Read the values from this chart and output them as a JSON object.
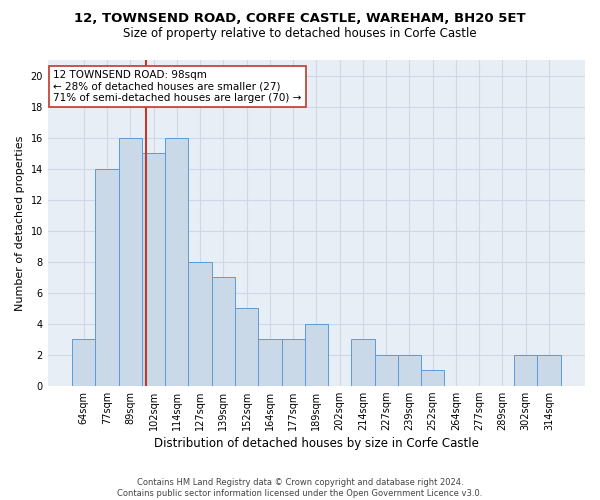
{
  "title1": "12, TOWNSEND ROAD, CORFE CASTLE, WAREHAM, BH20 5ET",
  "title2": "Size of property relative to detached houses in Corfe Castle",
  "xlabel": "Distribution of detached houses by size in Corfe Castle",
  "ylabel": "Number of detached properties",
  "categories": [
    "64sqm",
    "77sqm",
    "89sqm",
    "102sqm",
    "114sqm",
    "127sqm",
    "139sqm",
    "152sqm",
    "164sqm",
    "177sqm",
    "189sqm",
    "202sqm",
    "214sqm",
    "227sqm",
    "239sqm",
    "252sqm",
    "264sqm",
    "277sqm",
    "289sqm",
    "302sqm",
    "314sqm"
  ],
  "values": [
    3,
    14,
    16,
    15,
    16,
    8,
    7,
    5,
    3,
    3,
    4,
    0,
    3,
    2,
    2,
    1,
    0,
    0,
    0,
    2,
    2
  ],
  "bar_color": "#c9d9e8",
  "bar_edge_color": "#5b9bd5",
  "grid_color": "#d0d8e8",
  "background_color": "#e8eef5",
  "vline_color": "#c0392b",
  "annotation_text": "12 TOWNSEND ROAD: 98sqm\n← 28% of detached houses are smaller (27)\n71% of semi-detached houses are larger (70) →",
  "annotation_box_color": "#ffffff",
  "annotation_box_edge": "#c0392b",
  "footer_text": "Contains HM Land Registry data © Crown copyright and database right 2024.\nContains public sector information licensed under the Open Government Licence v3.0.",
  "ylim": [
    0,
    21
  ],
  "yticks": [
    0,
    2,
    4,
    6,
    8,
    10,
    12,
    14,
    16,
    18,
    20
  ],
  "title1_fontsize": 9.5,
  "title2_fontsize": 8.5,
  "xlabel_fontsize": 8.5,
  "ylabel_fontsize": 8,
  "tick_fontsize": 7,
  "annotation_fontsize": 7.5,
  "footer_fontsize": 6
}
